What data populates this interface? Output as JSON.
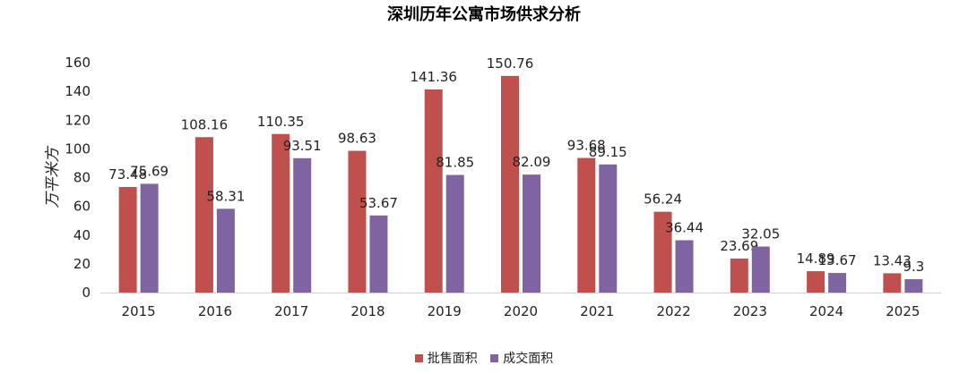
{
  "chart_data": {
    "type": "bar",
    "title": "深圳历年公寓市场供求分析",
    "ylabel": "万平米方",
    "xlabel": "",
    "ylim": [
      0,
      160
    ],
    "yticks": [
      0,
      20,
      40,
      60,
      80,
      100,
      120,
      140,
      160
    ],
    "categories": [
      "2015",
      "2016",
      "2017",
      "2018",
      "2019",
      "2020",
      "2021",
      "2022",
      "2023",
      "2024",
      "2025"
    ],
    "series": [
      {
        "name": "批售面积",
        "color": "#c0504d",
        "values": [
          73.48,
          108.16,
          110.35,
          98.63,
          141.36,
          150.76,
          93.68,
          56.24,
          23.69,
          14.89,
          13.43
        ]
      },
      {
        "name": "成交面积",
        "color": "#8064a2",
        "values": [
          75.69,
          58.31,
          93.51,
          53.67,
          81.85,
          82.09,
          89.15,
          36.44,
          32.05,
          13.67,
          9.3
        ]
      }
    ],
    "legend_position": "bottom"
  }
}
